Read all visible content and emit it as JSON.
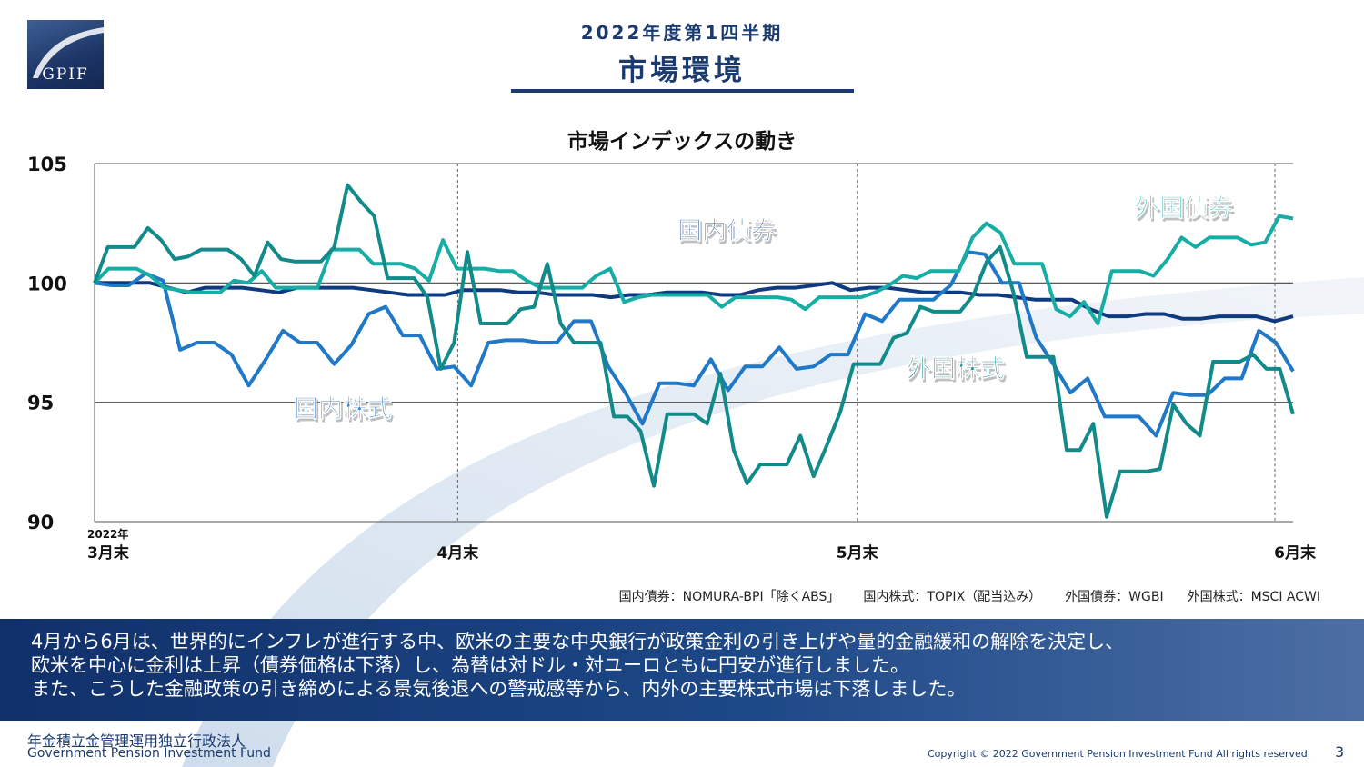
{
  "logo": {
    "text": "GPIF"
  },
  "header": {
    "subtitle": "2022年度第1四半期",
    "title": "市場環境"
  },
  "chart_data": {
    "type": "line",
    "title": "市場インデックスの動き",
    "ylim": [
      90,
      105
    ],
    "y_ticks": [
      90,
      95,
      100,
      105
    ],
    "xlim": [
      0,
      66
    ],
    "x_ticks": [
      {
        "x": 0,
        "label": "3月末",
        "sublabel": "2022年"
      },
      {
        "x": 20,
        "label": "4月末"
      },
      {
        "x": 42,
        "label": "5月末"
      },
      {
        "x": 65,
        "label": "6月末"
      }
    ],
    "grid": {
      "horizontal": [
        95,
        100
      ],
      "vertical_dashed_at_x": [
        20,
        42,
        65
      ]
    },
    "series": [
      {
        "name": "国内債券",
        "color": "#103a80",
        "values": [
          100.0,
          100.0,
          100.0,
          100.0,
          99.8,
          99.6,
          99.8,
          99.8,
          99.8,
          99.7,
          99.6,
          99.8,
          99.8,
          99.8,
          99.8,
          99.7,
          99.6,
          99.5,
          99.5,
          99.5,
          99.7,
          99.7,
          99.7,
          99.6,
          99.6,
          99.5,
          99.5,
          99.5,
          99.4,
          99.5,
          99.5,
          99.6,
          99.6,
          99.6,
          99.5,
          99.5,
          99.7,
          99.8,
          99.8,
          99.9,
          100.0,
          99.7,
          99.8,
          99.8,
          99.7,
          99.6,
          99.6,
          99.6,
          99.5,
          99.5,
          99.4,
          99.3,
          99.3,
          99.3,
          98.9,
          98.6,
          98.6,
          98.7,
          98.7,
          98.5,
          98.5,
          98.6,
          98.6,
          98.6,
          98.4,
          98.6
        ]
      },
      {
        "name": "国内株式",
        "color": "#1f78c8",
        "values": [
          100.0,
          99.9,
          99.9,
          100.4,
          100.1,
          97.2,
          97.5,
          97.5,
          97.0,
          95.7,
          96.8,
          98.0,
          97.5,
          97.5,
          96.6,
          97.4,
          98.7,
          99.0,
          97.8,
          97.8,
          96.4,
          96.5,
          95.7,
          97.5,
          97.6,
          97.6,
          97.5,
          97.5,
          98.4,
          98.4,
          96.5,
          95.4,
          94.1,
          95.8,
          95.8,
          95.7,
          96.8,
          95.5,
          96.5,
          96.5,
          97.3,
          96.4,
          96.5,
          97.0,
          97.0,
          98.7,
          98.4,
          99.3,
          99.3,
          99.3,
          99.9,
          101.3,
          101.2,
          100.0,
          100.0,
          97.7,
          96.6,
          95.4,
          96.0,
          94.4,
          94.4,
          94.4,
          93.6,
          95.4,
          95.3,
          95.3,
          96.0,
          96.0,
          98.0,
          97.5,
          96.3
        ]
      },
      {
        "name": "外国債券",
        "color": "#16ada5",
        "values": [
          100.0,
          100.6,
          100.6,
          100.6,
          100.3,
          99.8,
          99.7,
          99.6,
          99.6,
          99.6,
          100.1,
          100.0,
          100.5,
          99.8,
          99.8,
          99.8,
          99.8,
          101.4,
          101.4,
          101.4,
          100.8,
          100.8,
          100.8,
          100.6,
          100.1,
          101.8,
          100.6,
          100.6,
          100.6,
          100.5,
          100.5,
          100.1,
          99.8,
          99.8,
          99.8,
          99.8,
          100.3,
          100.6,
          99.2,
          99.4,
          99.5,
          99.5,
          99.5,
          99.5,
          99.5,
          99.0,
          99.4,
          99.4,
          99.4,
          99.4,
          99.3,
          98.9,
          99.4,
          99.4,
          99.4,
          99.4,
          99.6,
          99.9,
          100.3,
          100.2,
          100.5,
          100.5,
          100.5,
          101.9,
          102.5,
          102.1,
          100.8,
          100.8,
          100.8,
          98.9,
          98.6,
          99.2,
          98.3,
          100.5,
          100.5,
          100.5,
          100.3,
          101.0,
          101.9,
          101.5,
          101.9,
          101.9,
          101.9,
          101.6,
          101.7,
          102.8,
          102.7
        ]
      },
      {
        "name": "外国株式",
        "color": "#138a8a",
        "values": [
          100.0,
          101.5,
          101.5,
          101.5,
          102.3,
          101.8,
          101.0,
          101.1,
          101.4,
          101.4,
          101.4,
          101.0,
          100.3,
          101.7,
          101.0,
          100.9,
          100.9,
          100.9,
          101.5,
          104.1,
          103.4,
          102.8,
          100.2,
          100.2,
          100.2,
          99.4,
          96.4,
          97.5,
          101.3,
          98.3,
          98.3,
          98.3,
          98.9,
          99.0,
          100.8,
          98.3,
          97.5,
          97.5,
          97.5,
          94.4,
          94.4,
          93.8,
          91.5,
          94.5,
          94.5,
          94.5,
          94.1,
          96.2,
          93.0,
          91.6,
          92.4,
          92.4,
          92.4,
          93.6,
          91.9,
          93.2,
          94.6,
          96.6,
          96.6,
          96.6,
          97.7,
          97.9,
          99.0,
          98.8,
          98.8,
          98.8,
          99.5,
          100.9,
          101.5,
          99.6,
          96.9,
          96.9,
          96.9,
          93.0,
          93.0,
          94.1,
          90.2,
          92.1,
          92.1,
          92.1,
          92.2,
          94.9,
          94.1,
          93.6,
          96.7,
          96.7,
          96.7,
          97.0,
          96.4,
          96.4,
          94.5
        ]
      }
    ],
    "annotations": [
      {
        "text": "国内債券",
        "series": "国内債券"
      },
      {
        "text": "国内株式",
        "series": "国内株式"
      },
      {
        "text": "外国債券",
        "series": "外国債券"
      },
      {
        "text": "外国株式",
        "series": "外国株式"
      }
    ]
  },
  "source_notes": [
    "国内債券：NOMURA-BPI「除くABS」",
    "国内株式：TOPIX（配当込み）",
    "外国債券：WGBI",
    "外国株式：MSCI ACWI"
  ],
  "summary": {
    "line1": "4月から6月は、世界的にインフレが進行する中、欧米の主要な中央銀行が政策金利の引き上げや量的金融緩和の解除を決定し、",
    "line2": "欧米を中心に金利は上昇（債券価格は下落）し、為替は対ドル・対ユーロともに円安が進行しました。",
    "line3": "また、こうした金融政策の引き締めによる景気後退への警戒感等から、内外の主要株式市場は下落しました。"
  },
  "footer": {
    "org_jp": "年金積立金管理運用独立行政法人",
    "org_en": "Government Pension Investment Fund",
    "copyright": "Copyright © 2022 Government Pension Investment Fund All rights reserved.",
    "page": "3"
  }
}
